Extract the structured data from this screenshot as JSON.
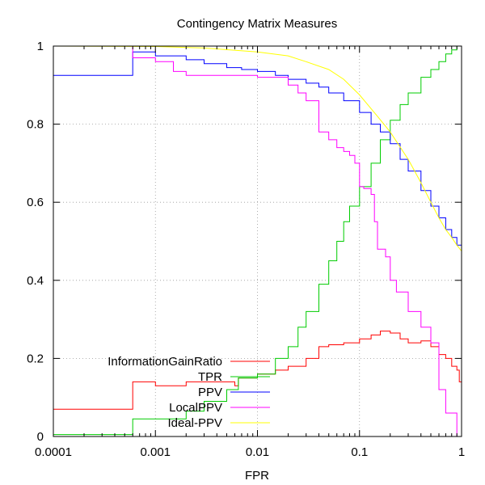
{
  "chart_data": {
    "type": "line",
    "title": "Contingency Matrix Measures",
    "xlabel": "FPR",
    "ylabel": "",
    "xscale": "log",
    "xlim": [
      0.0001,
      1
    ],
    "ylim": [
      0,
      1
    ],
    "x_ticks": [
      0.0001,
      0.001,
      0.01,
      0.1,
      1
    ],
    "x_tick_labels": [
      "0.0001",
      "0.001",
      "0.01",
      "0.1",
      "1"
    ],
    "y_ticks": [
      0,
      0.2,
      0.4,
      0.6,
      0.8,
      1
    ],
    "y_tick_labels": [
      "0",
      "0.2",
      "0.4",
      "0.6",
      "0.8",
      "1"
    ],
    "grid": true,
    "legend_position": "bottom-left",
    "series": [
      {
        "name": "InformationGainRatio",
        "color": "#ff0000",
        "step": true,
        "x": [
          0.0001,
          0.0006,
          0.0006,
          0.001,
          0.002,
          0.004,
          0.006,
          0.0065,
          0.01,
          0.015,
          0.02,
          0.03,
          0.04,
          0.05,
          0.07,
          0.1,
          0.13,
          0.16,
          0.2,
          0.25,
          0.3,
          0.4,
          0.5,
          0.6,
          0.7,
          0.8,
          0.9,
          0.95,
          1
        ],
        "y": [
          0.07,
          0.07,
          0.14,
          0.13,
          0.14,
          0.14,
          0.13,
          0.15,
          0.16,
          0.17,
          0.18,
          0.2,
          0.23,
          0.235,
          0.24,
          0.25,
          0.26,
          0.27,
          0.265,
          0.25,
          0.24,
          0.245,
          0.23,
          0.21,
          0.2,
          0.18,
          0.17,
          0.14,
          0.12
        ]
      },
      {
        "name": "TPR",
        "color": "#00cc00",
        "step": true,
        "x": [
          0.0001,
          0.0006,
          0.0006,
          0.001,
          0.002,
          0.003,
          0.005,
          0.0065,
          0.0065,
          0.01,
          0.015,
          0.02,
          0.025,
          0.03,
          0.04,
          0.05,
          0.06,
          0.07,
          0.08,
          0.1,
          0.13,
          0.16,
          0.2,
          0.25,
          0.3,
          0.4,
          0.5,
          0.6,
          0.7,
          0.8,
          0.9,
          1
        ],
        "y": [
          0.005,
          0.005,
          0.045,
          0.045,
          0.065,
          0.09,
          0.12,
          0.13,
          0.15,
          0.16,
          0.2,
          0.23,
          0.28,
          0.32,
          0.39,
          0.45,
          0.5,
          0.55,
          0.59,
          0.64,
          0.7,
          0.76,
          0.81,
          0.85,
          0.88,
          0.92,
          0.94,
          0.96,
          0.98,
          0.99,
          1.0,
          1.0
        ]
      },
      {
        "name": "PPV",
        "color": "#0000ff",
        "step": true,
        "x": [
          0.0001,
          0.0006,
          0.0006,
          0.001,
          0.002,
          0.003,
          0.005,
          0.007,
          0.01,
          0.015,
          0.02,
          0.03,
          0.04,
          0.05,
          0.07,
          0.1,
          0.13,
          0.16,
          0.2,
          0.25,
          0.3,
          0.4,
          0.5,
          0.6,
          0.7,
          0.8,
          0.9,
          1
        ],
        "y": [
          0.925,
          0.925,
          0.985,
          0.975,
          0.965,
          0.955,
          0.945,
          0.94,
          0.935,
          0.925,
          0.915,
          0.905,
          0.895,
          0.88,
          0.86,
          0.83,
          0.8,
          0.78,
          0.75,
          0.71,
          0.68,
          0.63,
          0.59,
          0.56,
          0.53,
          0.51,
          0.49,
          0.47
        ]
      },
      {
        "name": "LocalPPV",
        "color": "#ff00ff",
        "step": true,
        "x": [
          0.0001,
          0.0006,
          0.0006,
          0.001,
          0.0015,
          0.002,
          0.005,
          0.01,
          0.02,
          0.025,
          0.03,
          0.04,
          0.05,
          0.06,
          0.07,
          0.08,
          0.09,
          0.1,
          0.11,
          0.13,
          0.14,
          0.15,
          0.18,
          0.2,
          0.23,
          0.3,
          0.4,
          0.5,
          0.6,
          0.7,
          0.8,
          0.9,
          1
        ],
        "y": [
          1.0,
          1.0,
          0.97,
          0.96,
          0.935,
          0.925,
          0.925,
          0.92,
          0.9,
          0.88,
          0.86,
          0.78,
          0.76,
          0.74,
          0.73,
          0.72,
          0.7,
          0.64,
          0.635,
          0.62,
          0.55,
          0.48,
          0.46,
          0.4,
          0.37,
          0.32,
          0.28,
          0.24,
          0.12,
          0.06,
          0.06,
          0.0,
          0.0
        ]
      },
      {
        "name": "Ideal-PPV",
        "color": "#ffff00",
        "step": false,
        "x": [
          0.0001,
          0.001,
          0.003,
          0.01,
          0.02,
          0.03,
          0.05,
          0.07,
          0.1,
          0.15,
          0.2,
          0.3,
          0.4,
          0.5,
          0.6,
          0.7,
          0.8,
          0.9,
          1
        ],
        "y": [
          1.0,
          0.999,
          0.995,
          0.985,
          0.975,
          0.96,
          0.94,
          0.915,
          0.875,
          0.82,
          0.78,
          0.71,
          0.65,
          0.6,
          0.56,
          0.53,
          0.51,
          0.49,
          0.475
        ]
      }
    ]
  }
}
